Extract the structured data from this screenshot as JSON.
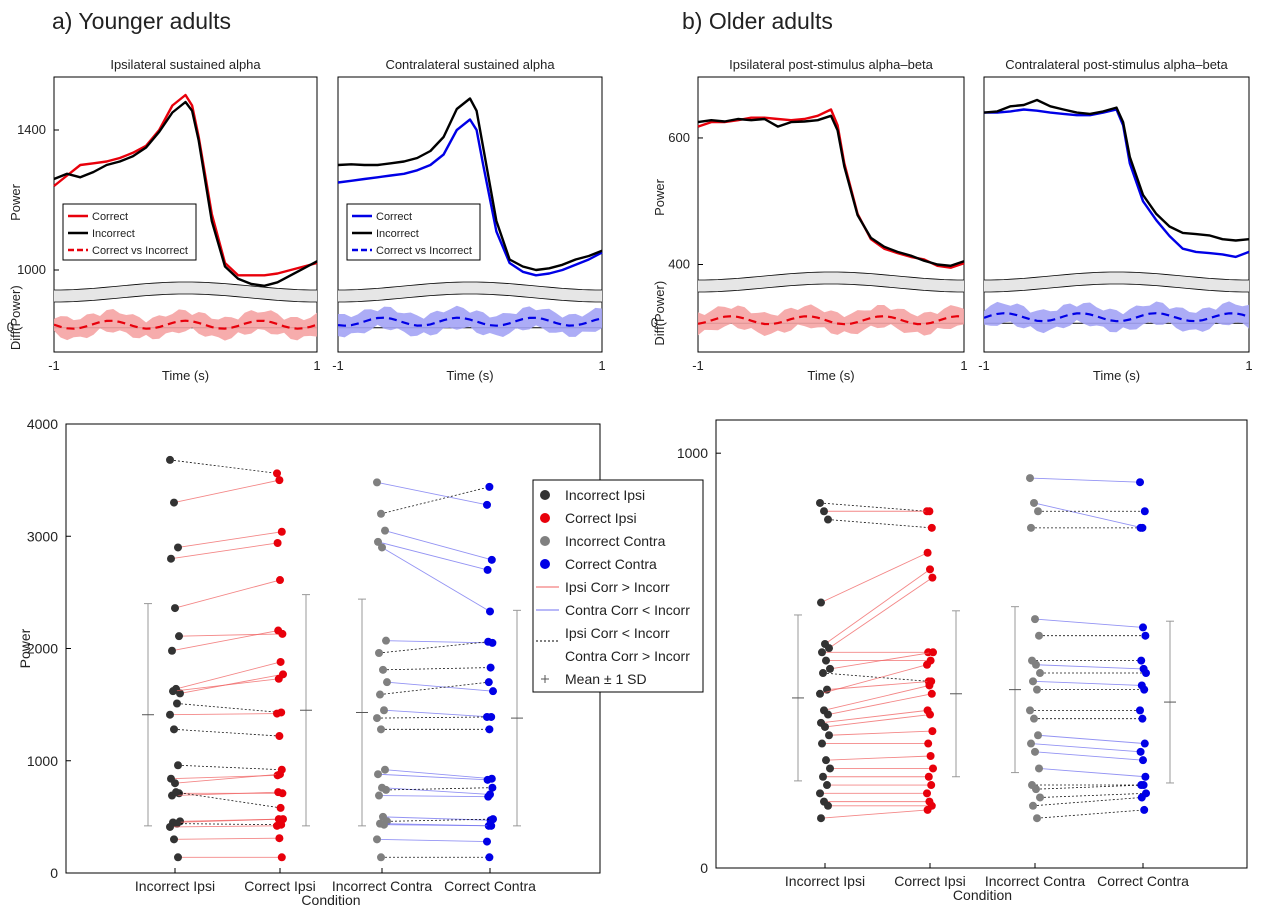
{
  "panels": {
    "a_title": "a) Younger adults",
    "b_title": "b) Older adults"
  },
  "axis_text": {
    "time_label": "Time (s)",
    "power_label": "Power",
    "diff_label": "Diff(Power)",
    "condition_label": "Condition",
    "tick_minus1": "-1",
    "tick_1": "1",
    "tick_0": "0"
  },
  "colors": {
    "correct_ipsi": "#e8000b",
    "correct_contra": "#0000e6",
    "incorrect_ipsi": "#333333",
    "incorrect_contra": "#808080",
    "ipsi_shade": "#f5a3a3",
    "contra_shade": "#a3a3f5"
  },
  "chart_data": [
    {
      "type": "line",
      "title": "Ipsilateral sustained alpha",
      "xlabel": "Time (s)",
      "ylabel": "Power",
      "xlim": [
        -1,
        1
      ],
      "ylim": [
        960,
        1540
      ],
      "yticks": [
        1000,
        1400
      ],
      "legend": "left",
      "legend_entries": [
        "Correct",
        "Incorrect",
        "Correct vs Incorrect"
      ],
      "x": [
        -1,
        -0.9,
        -0.8,
        -0.7,
        -0.6,
        -0.5,
        -0.4,
        -0.3,
        -0.2,
        -0.1,
        0,
        0.05,
        0.1,
        0.2,
        0.3,
        0.4,
        0.5,
        0.6,
        0.7,
        0.8,
        0.9,
        1
      ],
      "series": [
        {
          "name": "Correct",
          "color": "red",
          "values": [
            1240,
            1270,
            1300,
            1305,
            1310,
            1320,
            1335,
            1355,
            1400,
            1470,
            1500,
            1470,
            1380,
            1160,
            1020,
            985,
            985,
            985,
            990,
            1000,
            1010,
            1020
          ]
        },
        {
          "name": "Incorrect",
          "color": "black",
          "values": [
            1260,
            1275,
            1265,
            1280,
            1300,
            1310,
            1325,
            1350,
            1395,
            1450,
            1480,
            1455,
            1370,
            1140,
            1010,
            975,
            960,
            955,
            965,
            985,
            1005,
            1025
          ]
        }
      ],
      "diff": {
        "ylabel": "Diff(Power)",
        "ytick": "0",
        "color": "red"
      }
    },
    {
      "type": "line",
      "title": "Contralateral sustained alpha",
      "xlabel": "Time (s)",
      "ylabel": "",
      "xlim": [
        -1,
        1
      ],
      "ylim": [
        960,
        1540
      ],
      "legend": "left",
      "legend_entries": [
        "Correct",
        "Incorrect",
        "Correct vs Incorrect"
      ],
      "x": [
        -1,
        -0.9,
        -0.8,
        -0.7,
        -0.6,
        -0.5,
        -0.4,
        -0.3,
        -0.2,
        -0.1,
        0,
        0.05,
        0.1,
        0.2,
        0.3,
        0.4,
        0.5,
        0.6,
        0.7,
        0.8,
        0.9,
        1
      ],
      "series": [
        {
          "name": "Correct",
          "color": "blue",
          "values": [
            1250,
            1255,
            1260,
            1265,
            1270,
            1275,
            1285,
            1300,
            1330,
            1400,
            1430,
            1400,
            1300,
            1110,
            1020,
            995,
            985,
            990,
            1000,
            1015,
            1030,
            1050
          ]
        },
        {
          "name": "Incorrect",
          "color": "black",
          "values": [
            1300,
            1302,
            1300,
            1300,
            1305,
            1310,
            1320,
            1340,
            1380,
            1460,
            1490,
            1455,
            1350,
            1140,
            1030,
            1010,
            1000,
            1005,
            1015,
            1030,
            1040,
            1055
          ]
        }
      ],
      "diff": {
        "color": "blue"
      }
    },
    {
      "type": "line",
      "title": "Ipsilateral post-stimulus alpha–beta",
      "xlabel": "Time (s)",
      "ylabel": "Power",
      "xlim": [
        -1,
        1
      ],
      "ylim": [
        385,
        690
      ],
      "yticks": [
        400,
        600
      ],
      "x": [
        -1,
        -0.9,
        -0.8,
        -0.7,
        -0.6,
        -0.5,
        -0.4,
        -0.3,
        -0.2,
        -0.1,
        0,
        0.05,
        0.1,
        0.2,
        0.3,
        0.4,
        0.5,
        0.6,
        0.7,
        0.8,
        0.9,
        1
      ],
      "series": [
        {
          "name": "Correct",
          "color": "red",
          "values": [
            618,
            625,
            625,
            628,
            632,
            632,
            630,
            628,
            630,
            635,
            645,
            620,
            560,
            480,
            440,
            425,
            418,
            412,
            408,
            398,
            395,
            402
          ]
        },
        {
          "name": "Incorrect",
          "color": "black",
          "values": [
            625,
            628,
            626,
            630,
            628,
            630,
            618,
            625,
            626,
            628,
            635,
            612,
            555,
            478,
            442,
            428,
            420,
            414,
            406,
            400,
            398,
            405
          ]
        }
      ],
      "diff": {
        "ylabel": "Diff(Power)",
        "ytick": "0",
        "color": "red"
      }
    },
    {
      "type": "line",
      "title": "Contralateral post-stimulus alpha–beta",
      "xlabel": "Time (s)",
      "ylabel": "",
      "xlim": [
        -1,
        1
      ],
      "ylim": [
        385,
        690
      ],
      "x": [
        -1,
        -0.9,
        -0.8,
        -0.7,
        -0.6,
        -0.5,
        -0.4,
        -0.3,
        -0.2,
        -0.1,
        0,
        0.05,
        0.1,
        0.2,
        0.3,
        0.4,
        0.5,
        0.6,
        0.7,
        0.8,
        0.9,
        1
      ],
      "series": [
        {
          "name": "Correct",
          "color": "blue",
          "values": [
            640,
            640,
            642,
            645,
            643,
            640,
            638,
            636,
            636,
            640,
            645,
            620,
            560,
            500,
            470,
            445,
            425,
            420,
            418,
            416,
            412,
            420
          ]
        },
        {
          "name": "Incorrect",
          "color": "black",
          "values": [
            640,
            642,
            650,
            652,
            660,
            650,
            645,
            640,
            638,
            642,
            648,
            625,
            570,
            510,
            480,
            460,
            450,
            448,
            446,
            440,
            438,
            440
          ]
        }
      ],
      "diff": {
        "color": "blue"
      }
    },
    {
      "type": "scatter",
      "ylabel": "Power",
      "xlabel": "Condition",
      "categories": [
        "Incorrect Ipsi",
        "Correct Ipsi",
        "Incorrect Contra",
        "Correct Contra"
      ],
      "ylim": [
        0,
        4000
      ],
      "yticks": [
        0,
        1000,
        2000,
        3000,
        4000
      ],
      "legend": "center-right",
      "legend_entries": [
        "Incorrect Ipsi",
        "Correct Ipsi",
        "Incorrect Contra",
        "Correct Contra",
        "Ipsi Corr > Incorr",
        "Contra Corr < Incorr",
        "Ipsi Corr < Incorr",
        "Contra Corr > Incorr",
        "Mean ± 1 SD"
      ],
      "ipsi_pairs": [
        [
          3680,
          3560
        ],
        [
          3300,
          3500
        ],
        [
          2900,
          3040
        ],
        [
          2800,
          2940
        ],
        [
          2360,
          2610
        ],
        [
          2110,
          2130
        ],
        [
          1980,
          2160
        ],
        [
          1640,
          1880
        ],
        [
          1600,
          1770
        ],
        [
          1620,
          1730
        ],
        [
          1510,
          1430
        ],
        [
          1410,
          1420
        ],
        [
          1280,
          1220
        ],
        [
          960,
          920
        ],
        [
          840,
          870
        ],
        [
          800,
          880
        ],
        [
          710,
          710
        ],
        [
          690,
          720
        ],
        [
          720,
          580
        ],
        [
          460,
          480
        ],
        [
          450,
          480
        ],
        [
          440,
          430
        ],
        [
          410,
          420
        ],
        [
          300,
          310
        ],
        [
          140,
          140
        ]
      ],
      "contra_pairs": [
        [
          3480,
          3280
        ],
        [
          3200,
          3440
        ],
        [
          3050,
          2790
        ],
        [
          2950,
          2700
        ],
        [
          2900,
          2330
        ],
        [
          2070,
          2050
        ],
        [
          1960,
          2060
        ],
        [
          1810,
          1830
        ],
        [
          1700,
          1620
        ],
        [
          1590,
          1700
        ],
        [
          1450,
          1390
        ],
        [
          1380,
          1390
        ],
        [
          1280,
          1280
        ],
        [
          920,
          840
        ],
        [
          880,
          830
        ],
        [
          760,
          700
        ],
        [
          740,
          760
        ],
        [
          690,
          680
        ],
        [
          500,
          470
        ],
        [
          460,
          480
        ],
        [
          440,
          420
        ],
        [
          430,
          420
        ],
        [
          300,
          280
        ],
        [
          140,
          140
        ]
      ],
      "means": {
        "incorrect_ipsi": 1410,
        "correct_ipsi": 1450,
        "incorrect_contra": 1430,
        "correct_contra": 1380
      },
      "sd": {
        "incorrect_ipsi": 990,
        "correct_ipsi": 1030,
        "incorrect_contra": 1010,
        "correct_contra": 960
      }
    },
    {
      "type": "scatter",
      "ylabel": "",
      "xlabel": "Condition",
      "categories": [
        "Incorrect Ipsi",
        "Correct Ipsi",
        "Incorrect Contra",
        "Correct Contra"
      ],
      "ylim": [
        0,
        1080
      ],
      "yticks": [
        0,
        1000
      ],
      "ipsi_pairs": [
        [
          880,
          860
        ],
        [
          860,
          860
        ],
        [
          840,
          820
        ],
        [
          640,
          760
        ],
        [
          540,
          720
        ],
        [
          530,
          700
        ],
        [
          520,
          520
        ],
        [
          500,
          500
        ],
        [
          480,
          520
        ],
        [
          470,
          450
        ],
        [
          430,
          450
        ],
        [
          420,
          490
        ],
        [
          380,
          440
        ],
        [
          370,
          420
        ],
        [
          350,
          380
        ],
        [
          340,
          370
        ],
        [
          320,
          330
        ],
        [
          300,
          300
        ],
        [
          260,
          270
        ],
        [
          240,
          240
        ],
        [
          220,
          220
        ],
        [
          200,
          200
        ],
        [
          180,
          180
        ],
        [
          160,
          160
        ],
        [
          150,
          150
        ],
        [
          120,
          140
        ]
      ],
      "contra_pairs": [
        [
          940,
          930
        ],
        [
          880,
          820
        ],
        [
          860,
          860
        ],
        [
          820,
          820
        ],
        [
          600,
          580
        ],
        [
          560,
          560
        ],
        [
          500,
          500
        ],
        [
          490,
          480
        ],
        [
          470,
          470
        ],
        [
          450,
          440
        ],
        [
          430,
          430
        ],
        [
          380,
          380
        ],
        [
          360,
          360
        ],
        [
          320,
          300
        ],
        [
          300,
          280
        ],
        [
          280,
          260
        ],
        [
          240,
          220
        ],
        [
          200,
          200
        ],
        [
          190,
          200
        ],
        [
          170,
          180
        ],
        [
          150,
          170
        ],
        [
          120,
          140
        ]
      ],
      "means": {
        "incorrect_ipsi": 410,
        "correct_ipsi": 420,
        "incorrect_contra": 430,
        "correct_contra": 400
      },
      "sd": {
        "incorrect_ipsi": 200,
        "correct_ipsi": 200,
        "incorrect_contra": 200,
        "correct_contra": 195
      }
    }
  ]
}
